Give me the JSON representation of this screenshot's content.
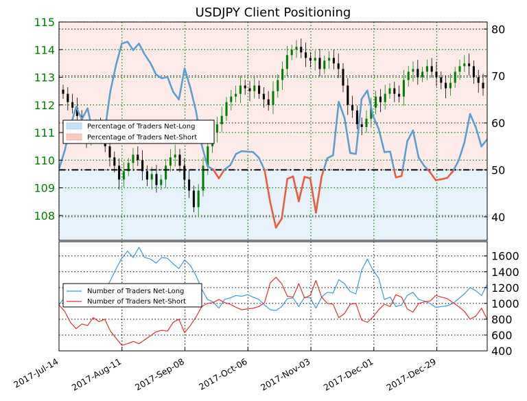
{
  "chart_data": [
    {
      "type": "line",
      "title": "USDJPY Client Positioning",
      "left_axis": {
        "ticks": [
          108,
          109,
          110,
          111,
          112,
          113,
          114,
          115
        ],
        "ylim": [
          107.1,
          115
        ],
        "color": "#008000"
      },
      "right_axis": {
        "ticks": [
          40,
          50,
          60,
          70,
          80
        ],
        "ylim": [
          35,
          81.5
        ]
      },
      "reference_line": 50,
      "grid": true,
      "legend": {
        "placement": "middle-left",
        "entries": [
          "Percentage of Traders Net-Long",
          "Percentage of Traders Net-Short"
        ]
      },
      "shading": {
        "net_long": "#d4e8f7",
        "net_short": "#fbd3cf"
      },
      "candles": {
        "up_color": "#008000",
        "down_color": "#000000",
        "close": [
          112.4,
          112.1,
          111.9,
          111.6,
          111.2,
          110.8,
          110.9,
          111.3,
          111.0,
          110.5,
          110.1,
          109.8,
          109.3,
          109.6,
          109.9,
          110.2,
          110.0,
          109.6,
          109.3,
          109.5,
          109.1,
          109.3,
          109.8,
          110.1,
          110.2,
          109.8,
          109.3,
          108.9,
          108.3,
          108.9,
          109.8,
          110.5,
          111.0,
          111.3,
          111.6,
          112.1,
          112.3,
          112.4,
          112.7,
          112.6,
          112.5,
          112.7,
          112.4,
          112.2,
          112.0,
          112.5,
          112.9,
          113.3,
          113.8,
          114.0,
          114.1,
          113.9,
          113.7,
          113.6,
          113.7,
          113.3,
          113.6,
          113.7,
          113.5,
          113.3,
          112.7,
          112.0,
          111.8,
          111.3,
          111.2,
          111.5,
          111.9,
          112.3,
          112.1,
          112.4,
          112.6,
          112.4,
          112.3,
          112.9,
          113.2,
          113.3,
          113.0,
          113.2,
          113.4,
          113.2,
          113.0,
          112.8,
          112.6,
          112.8,
          113.2,
          113.4,
          113.5,
          113.4,
          113.0,
          112.8,
          112.6
        ]
      },
      "series": [
        {
          "name": "Percentage of Traders Net-Long",
          "color": "#5b9fd0",
          "values": [
            50.2,
            54.1,
            59.3,
            63.4,
            60.8,
            63.1,
            57.5,
            60.0,
            58.2,
            66.8,
            72.4,
            76.9,
            77.3,
            75.5,
            76.9,
            74.6,
            72.8,
            70.3,
            69.5,
            69.8,
            66.6,
            65.0,
            71.6,
            67.5,
            62.5,
            55.3,
            50.8,
            50.1,
            48.2,
            50.1,
            51.0,
            53.4,
            54.0,
            53.9,
            53.8,
            52.6,
            50.0,
            43.1,
            37.7,
            39.6,
            48.1,
            48.6,
            43.3,
            48.5,
            48.2,
            40.9,
            48.6,
            52.5,
            53.1,
            64.5,
            61.1,
            53.6,
            53.4,
            65.1,
            66.9,
            61.5,
            58.7,
            53.8,
            53.9,
            48.4,
            48.7,
            56.1,
            58.4,
            52.6,
            50.8,
            49.5,
            47.8,
            48.0,
            48.3,
            49.7,
            52.0,
            55.8,
            61.9,
            59.1,
            55.0,
            56.5
          ]
        },
        {
          "name": "Percentage of Traders Net-Short",
          "color": "#f05a3c",
          "values": [
            50.2,
            54.1,
            59.3,
            63.4,
            60.8,
            63.1,
            57.5,
            60.0,
            58.2,
            66.8,
            72.4,
            76.9,
            77.3,
            75.5,
            76.9,
            74.6,
            72.8,
            70.3,
            69.5,
            69.8,
            66.6,
            65.0,
            71.6,
            67.5,
            62.5,
            55.3,
            50.8,
            50.1,
            48.2,
            50.1,
            51.0,
            53.4,
            54.0,
            53.9,
            53.8,
            52.6,
            50.0,
            43.1,
            37.7,
            39.6,
            48.1,
            48.6,
            43.3,
            48.5,
            48.2,
            40.9,
            48.6,
            52.5,
            53.1,
            64.5,
            61.1,
            53.6,
            53.4,
            65.1,
            66.9,
            61.5,
            58.7,
            53.8,
            53.9,
            48.4,
            48.7,
            56.1,
            58.4,
            52.6,
            50.8,
            49.5,
            47.8,
            48.0,
            48.3,
            49.7,
            52.0,
            55.8,
            61.9,
            59.1,
            55.0,
            56.5
          ]
        }
      ]
    },
    {
      "type": "line",
      "right_axis": {
        "ticks": [
          400,
          600,
          800,
          1000,
          1200,
          1400,
          1600
        ],
        "ylim": [
          400,
          1780
        ]
      },
      "x_tick_labels": [
        "2017-Jul-14",
        "2017-Aug-11",
        "2017-Sep-08",
        "2017-Oct-06",
        "2017-Nov-03",
        "2017-Dec-01",
        "2017-Dec-29"
      ],
      "grid": true,
      "legend": {
        "placement": "middle-left",
        "entries": [
          "Number of Traders Net-Long",
          "Number of Traders Net-Short"
        ]
      },
      "series": [
        {
          "name": "Number of Traders Net-Long",
          "color": "#3a9be0",
          "values": [
            980,
            1080,
            1100,
            1180,
            1150,
            1240,
            1120,
            1180,
            1160,
            1290,
            1440,
            1570,
            1660,
            1580,
            1710,
            1580,
            1560,
            1510,
            1580,
            1570,
            1500,
            1440,
            1550,
            1480,
            1350,
            1180,
            1050,
            1020,
            940,
            1050,
            1070,
            1100,
            1090,
            1110,
            1080,
            1050,
            980,
            920,
            910,
            960,
            1060,
            1070,
            960,
            1080,
            1070,
            940,
            1080,
            1140,
            1130,
            1300,
            1250,
            1150,
            1120,
            1420,
            1560,
            1420,
            1320,
            1050,
            1080,
            960,
            980,
            1100,
            1140,
            1050,
            1030,
            1000,
            950,
            960,
            970,
            1000,
            1060,
            1120,
            1200,
            1160,
            1100,
            1240
          ]
        },
        {
          "name": "Number of Traders Net-Short",
          "color": "#e8302a",
          "values": [
            980,
            900,
            760,
            680,
            740,
            720,
            820,
            770,
            800,
            650,
            560,
            470,
            490,
            520,
            490,
            540,
            590,
            640,
            660,
            650,
            760,
            800,
            630,
            720,
            830,
            960,
            1000,
            1010,
            1050,
            1010,
            990,
            950,
            920,
            930,
            940,
            960,
            1010,
            1260,
            1330,
            1250,
            1090,
            1080,
            1250,
            1070,
            1100,
            1290,
            1080,
            1000,
            990,
            820,
            870,
            990,
            1000,
            790,
            760,
            830,
            920,
            990,
            960,
            1110,
            1080,
            930,
            890,
            1000,
            1020,
            1030,
            1100,
            1080,
            1060,
            1010,
            960,
            900,
            800,
            840,
            940,
            800
          ]
        }
      ]
    }
  ]
}
